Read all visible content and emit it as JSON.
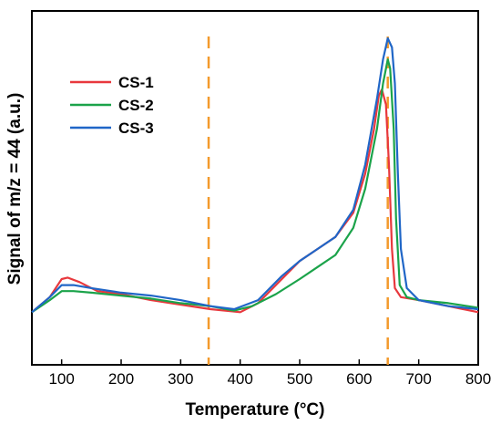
{
  "chart_data": {
    "type": "line",
    "title": "",
    "xlabel": "Temperature (°C)",
    "ylabel": "Signal of m/z = 44 (a.u.)",
    "xlim": [
      50,
      800
    ],
    "ylim": [
      0,
      100
    ],
    "x_ticks": [
      "100",
      "200",
      "300",
      "400",
      "500",
      "600",
      "700",
      "800"
    ],
    "y_ticks_labeled": false,
    "grid": false,
    "legend": "top-left",
    "reference_lines": [
      {
        "x": 347,
        "style": "dashed",
        "color": "#F39A2C"
      },
      {
        "x": 648,
        "style": "dashed",
        "color": "#F39A2C"
      }
    ],
    "series": [
      {
        "name": "CS-1",
        "color": "#E8383D",
        "points": [
          [
            50,
            9
          ],
          [
            80,
            14
          ],
          [
            100,
            20
          ],
          [
            110,
            20.5
          ],
          [
            130,
            19
          ],
          [
            160,
            16
          ],
          [
            200,
            15
          ],
          [
            250,
            13
          ],
          [
            300,
            11.5
          ],
          [
            350,
            10
          ],
          [
            400,
            9
          ],
          [
            430,
            12
          ],
          [
            470,
            20
          ],
          [
            500,
            26
          ],
          [
            530,
            30
          ],
          [
            560,
            34
          ],
          [
            590,
            42
          ],
          [
            610,
            55
          ],
          [
            625,
            70
          ],
          [
            633,
            81
          ],
          [
            638,
            83
          ],
          [
            645,
            78
          ],
          [
            650,
            58
          ],
          [
            655,
            30
          ],
          [
            660,
            17
          ],
          [
            670,
            14
          ],
          [
            700,
            13
          ],
          [
            750,
            11
          ],
          [
            800,
            9
          ]
        ]
      },
      {
        "name": "CS-2",
        "color": "#1BA34A",
        "points": [
          [
            50,
            9
          ],
          [
            80,
            13
          ],
          [
            100,
            16
          ],
          [
            120,
            16
          ],
          [
            150,
            15.5
          ],
          [
            200,
            14.5
          ],
          [
            250,
            13.5
          ],
          [
            300,
            12
          ],
          [
            350,
            11
          ],
          [
            390,
            9.5
          ],
          [
            420,
            11
          ],
          [
            460,
            15
          ],
          [
            500,
            20
          ],
          [
            530,
            24
          ],
          [
            560,
            28
          ],
          [
            590,
            37
          ],
          [
            610,
            50
          ],
          [
            630,
            70
          ],
          [
            640,
            85
          ],
          [
            648,
            93
          ],
          [
            652,
            90
          ],
          [
            658,
            70
          ],
          [
            662,
            40
          ],
          [
            668,
            18
          ],
          [
            680,
            14
          ],
          [
            700,
            13
          ],
          [
            750,
            12
          ],
          [
            800,
            10.5
          ]
        ]
      },
      {
        "name": "CS-3",
        "color": "#2066C7",
        "points": [
          [
            50,
            9
          ],
          [
            80,
            14
          ],
          [
            100,
            18
          ],
          [
            120,
            18
          ],
          [
            150,
            17
          ],
          [
            200,
            15.5
          ],
          [
            250,
            14.5
          ],
          [
            300,
            13
          ],
          [
            350,
            11
          ],
          [
            390,
            10
          ],
          [
            430,
            13
          ],
          [
            470,
            21
          ],
          [
            500,
            26
          ],
          [
            530,
            30
          ],
          [
            560,
            34
          ],
          [
            590,
            43
          ],
          [
            610,
            58
          ],
          [
            630,
            80
          ],
          [
            640,
            93
          ],
          [
            648,
            100
          ],
          [
            655,
            97
          ],
          [
            660,
            85
          ],
          [
            665,
            55
          ],
          [
            670,
            30
          ],
          [
            680,
            17
          ],
          [
            700,
            13
          ],
          [
            750,
            11
          ],
          [
            800,
            10
          ]
        ]
      }
    ]
  }
}
